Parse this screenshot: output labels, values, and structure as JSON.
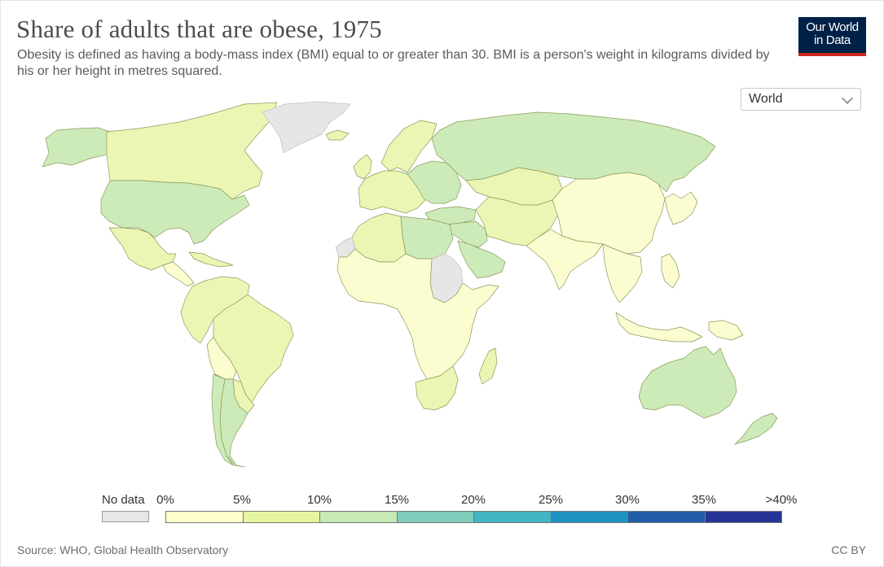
{
  "header": {
    "title": "Share of adults that are obese, 1975",
    "subtitle": "Obesity is defined as having a body-mass index (BMI) equal to or greater than 30. BMI is a person's weight in kilograms divided by his or her height in metres squared."
  },
  "logo": {
    "line1": "Our World",
    "line2": "in Data",
    "bg_color": "#002147",
    "accent_color": "#ce261e"
  },
  "region_selector": {
    "value": "World"
  },
  "legend": {
    "no_data_label": "No data",
    "no_data_color": "#e6e6e6",
    "ticks": [
      "0%",
      "5%",
      "10%",
      "15%",
      "20%",
      "25%",
      "30%",
      "35%",
      ">40%"
    ],
    "colors": [
      "#ffffcc",
      "#e8f5a0",
      "#c7e9b4",
      "#7fcdbb",
      "#41b6c4",
      "#1d91c0",
      "#225ea8",
      "#253494"
    ]
  },
  "map": {
    "bins": {
      "b1": "#fbfccf",
      "b2": "#ecf6b4",
      "b3": "#cdebb8",
      "nd": "#e6e6e6"
    },
    "border_color": "#8a9a5b",
    "regions": [
      {
        "name": "Alaska",
        "bin": "b3"
      },
      {
        "name": "Canada",
        "bin": "b2"
      },
      {
        "name": "Greenland",
        "bin": "nd"
      },
      {
        "name": "United States",
        "bin": "b3"
      },
      {
        "name": "Mexico",
        "bin": "b2"
      },
      {
        "name": "Central America",
        "bin": "b1"
      },
      {
        "name": "Caribbean",
        "bin": "b2"
      },
      {
        "name": "Northern South America",
        "bin": "b2"
      },
      {
        "name": "Brazil",
        "bin": "b2"
      },
      {
        "name": "Bolivia",
        "bin": "b1"
      },
      {
        "name": "Argentina",
        "bin": "b3"
      },
      {
        "name": "Chile",
        "bin": "b3"
      },
      {
        "name": "Paraguay-Uruguay",
        "bin": "b2"
      },
      {
        "name": "Iceland",
        "bin": "b2"
      },
      {
        "name": "UK-Ireland",
        "bin": "b2"
      },
      {
        "name": "Scandinavia",
        "bin": "b2"
      },
      {
        "name": "Western Europe",
        "bin": "b2"
      },
      {
        "name": "Eastern Europe",
        "bin": "b3"
      },
      {
        "name": "Russia",
        "bin": "b3"
      },
      {
        "name": "Kazakhstan",
        "bin": "b2"
      },
      {
        "name": "Turkey",
        "bin": "b3"
      },
      {
        "name": "Middle East",
        "bin": "b3"
      },
      {
        "name": "Arabia",
        "bin": "b3"
      },
      {
        "name": "Iran-Central Asia",
        "bin": "b2"
      },
      {
        "name": "North Africa West",
        "bin": "b2"
      },
      {
        "name": "North Africa East",
        "bin": "b3"
      },
      {
        "name": "Sudan",
        "bin": "nd"
      },
      {
        "name": "Western Sahara",
        "bin": "nd"
      },
      {
        "name": "Sub-Saharan Africa",
        "bin": "b1"
      },
      {
        "name": "Southern Africa",
        "bin": "b2"
      },
      {
        "name": "Madagascar",
        "bin": "b2"
      },
      {
        "name": "South Asia",
        "bin": "b1"
      },
      {
        "name": "China-Mongolia",
        "bin": "b1"
      },
      {
        "name": "Korea-Japan",
        "bin": "b1"
      },
      {
        "name": "Southeast Asia",
        "bin": "b1"
      },
      {
        "name": "Indonesia",
        "bin": "b1"
      },
      {
        "name": "Philippines",
        "bin": "b1"
      },
      {
        "name": "Papua New Guinea",
        "bin": "b1"
      },
      {
        "name": "Australia",
        "bin": "b3"
      },
      {
        "name": "New Zealand",
        "bin": "b3"
      }
    ]
  },
  "footer": {
    "source": "Source: WHO, Global Health Observatory",
    "license": "CC BY"
  }
}
